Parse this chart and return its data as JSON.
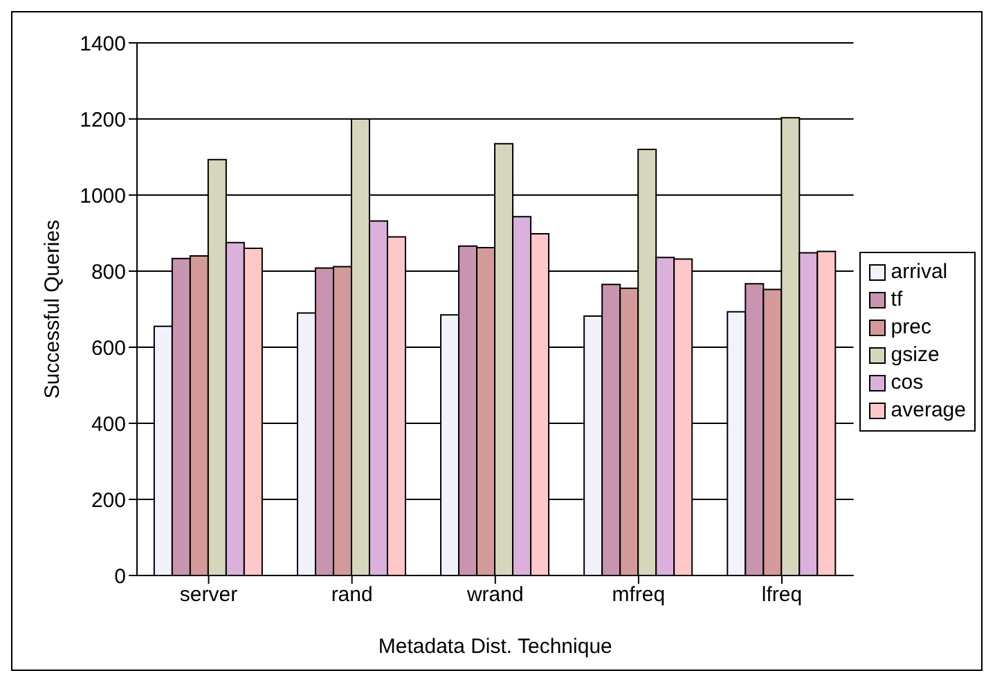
{
  "chart_data": {
    "type": "bar",
    "xlabel": "Metadata Dist. Technique",
    "ylabel": "Successful Queries",
    "categories": [
      "server",
      "rand",
      "wrand",
      "mfreq",
      "lfreq"
    ],
    "series": [
      {
        "name": "arrival",
        "color": "#f2f2fc",
        "values": [
          655,
          690,
          685,
          682,
          693
        ]
      },
      {
        "name": "tf",
        "color": "#c994b0",
        "values": [
          833,
          808,
          866,
          765,
          767
        ]
      },
      {
        "name": "prec",
        "color": "#d49a9a",
        "values": [
          840,
          812,
          862,
          755,
          752
        ]
      },
      {
        "name": "gsize",
        "color": "#d6d6bc",
        "values": [
          1093,
          1200,
          1135,
          1120,
          1203
        ]
      },
      {
        "name": "cos",
        "color": "#dcb0dc",
        "values": [
          875,
          932,
          943,
          836,
          848
        ]
      },
      {
        "name": "average",
        "color": "#ffc8c8",
        "values": [
          860,
          890,
          898,
          832,
          852
        ]
      }
    ],
    "ylim": [
      0,
      1400
    ],
    "yticks": [
      0,
      200,
      400,
      600,
      800,
      1000,
      1200,
      1400
    ],
    "grid": "y",
    "legend": "right"
  }
}
